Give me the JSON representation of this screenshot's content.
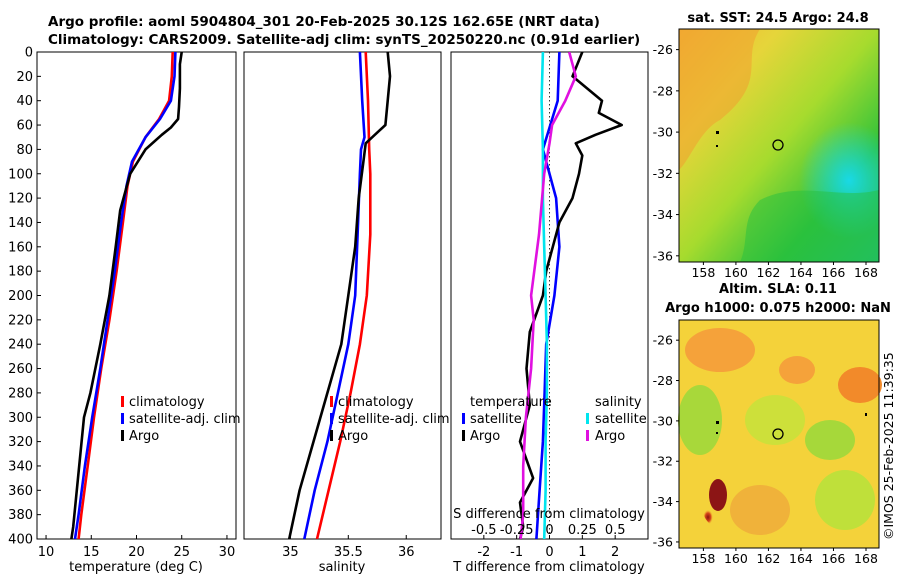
{
  "title_line1": "Argo profile: aoml 5904804_301 20-Feb-2025 30.12S 162.65E (NRT data)",
  "title_line2": "Climatology: CARS2009. Satellite-adj clim: synTS_20250220.nc (0.91d earlier)",
  "sst_title": "sat. SST: 24.5 Argo: 24.8",
  "sla_title1": "Altim. SLA: 0.11",
  "sla_title2": "Argo h1000: 0.075 h2000: NaN",
  "side_label": "©IMOS 25-Feb-2025 11:39:35",
  "colors": {
    "climatology": "#ff0000",
    "satellite": "#0000ff",
    "argo": "#000000",
    "sat_salinity": "#00e5ee",
    "argo_salinity": "#e010e0"
  },
  "chart_data": [
    {
      "type": "line",
      "xlabel": "temperature (deg C)",
      "ylabel": "",
      "xlim": [
        9,
        31
      ],
      "ylim": [
        400,
        0
      ],
      "xticks": [
        "10",
        "15",
        "20",
        "25",
        "30"
      ],
      "yticks": [
        "0",
        "20",
        "40",
        "60",
        "80",
        "100",
        "120",
        "140",
        "160",
        "180",
        "200",
        "220",
        "240",
        "260",
        "280",
        "300",
        "320",
        "340",
        "360",
        "380",
        "400"
      ],
      "legend": [
        "climatology",
        "satellite-adj. clim",
        "Argo"
      ],
      "series": [
        {
          "name": "climatology",
          "depth": [
            0,
            20,
            40,
            55,
            70,
            90,
            110,
            140,
            180,
            220,
            260,
            300,
            340,
            380,
            400
          ],
          "values": [
            24.0,
            23.9,
            23.6,
            22.5,
            21.0,
            19.6,
            19.0,
            18.5,
            17.8,
            17.0,
            16.1,
            15.3,
            14.6,
            13.9,
            13.6
          ]
        },
        {
          "name": "satellite-adj. clim",
          "depth": [
            0,
            20,
            40,
            55,
            70,
            90,
            110,
            140,
            180,
            220,
            260,
            300,
            340,
            380,
            400
          ],
          "values": [
            24.3,
            24.2,
            23.8,
            22.6,
            21.0,
            19.5,
            18.9,
            18.3,
            17.6,
            16.8,
            16.0,
            15.1,
            14.3,
            13.6,
            13.2
          ]
        },
        {
          "name": "Argo",
          "depth": [
            0,
            10,
            30,
            45,
            55,
            62,
            68,
            80,
            100,
            130,
            160,
            200,
            240,
            280,
            300,
            330,
            360,
            390,
            400
          ],
          "values": [
            25.0,
            24.8,
            24.8,
            24.7,
            24.6,
            23.8,
            22.8,
            21.0,
            19.3,
            18.2,
            17.7,
            17.0,
            16.0,
            14.9,
            14.2,
            13.8,
            13.4,
            13.0,
            12.8
          ]
        }
      ]
    },
    {
      "type": "line",
      "xlabel": "salinity",
      "xlim": [
        34.6,
        36.3
      ],
      "ylim": [
        400,
        0
      ],
      "xticks": [
        "35",
        "35.5",
        "36"
      ],
      "legend": [
        "climatology",
        "satellite-adj. clim",
        "Argo"
      ],
      "series": [
        {
          "name": "climatology",
          "depth": [
            0,
            40,
            80,
            100,
            150,
            200,
            240,
            280,
            320,
            360,
            400
          ],
          "values": [
            35.65,
            35.67,
            35.68,
            35.69,
            35.69,
            35.66,
            35.6,
            35.52,
            35.43,
            35.33,
            35.23
          ]
        },
        {
          "name": "satellite-adj. clim",
          "depth": [
            0,
            40,
            70,
            80,
            100,
            150,
            200,
            240,
            280,
            320,
            360,
            400
          ],
          "values": [
            35.6,
            35.62,
            35.64,
            35.61,
            35.6,
            35.58,
            35.56,
            35.5,
            35.41,
            35.32,
            35.21,
            35.12
          ]
        },
        {
          "name": "Argo",
          "depth": [
            0,
            20,
            40,
            60,
            75,
            90,
            120,
            160,
            200,
            240,
            280,
            320,
            360,
            400
          ],
          "values": [
            35.84,
            35.86,
            35.84,
            35.82,
            35.65,
            35.63,
            35.59,
            35.56,
            35.5,
            35.44,
            35.32,
            35.2,
            35.08,
            34.99
          ]
        }
      ]
    },
    {
      "type": "line",
      "xlabel": "T difference from climatology",
      "secondary_label": "S difference from climatology",
      "xlim": [
        -3,
        3
      ],
      "s_xlim": [
        -0.75,
        0.75
      ],
      "ylim": [
        400,
        0
      ],
      "xticks": [
        "-2",
        "-1",
        "0",
        "1",
        "2"
      ],
      "s_xticks": [
        "-0.5",
        "-0.25",
        "0",
        "0.25",
        "0.5"
      ],
      "legend_temperature": {
        "title": "temperature",
        "items": [
          "satellite",
          "Argo"
        ]
      },
      "legend_salinity": {
        "title": "salinity",
        "items": [
          "satellite",
          "Argo"
        ]
      },
      "series": [
        {
          "name": "T satellite",
          "depth": [
            0,
            40,
            80,
            120,
            160,
            200,
            240,
            280,
            320,
            360,
            400
          ],
          "values": [
            0.3,
            0.25,
            -0.2,
            0.2,
            0.3,
            0.15,
            -0.1,
            -0.15,
            -0.2,
            -0.3,
            -0.4
          ]
        },
        {
          "name": "T Argo",
          "depth": [
            0,
            20,
            40,
            50,
            60,
            68,
            75,
            85,
            100,
            120,
            140,
            160,
            180,
            200,
            230,
            260,
            290,
            320,
            350,
            370,
            390,
            400
          ],
          "values": [
            1.0,
            0.7,
            1.6,
            1.5,
            2.2,
            1.4,
            0.8,
            1.0,
            0.9,
            0.7,
            0.3,
            0.1,
            -0.1,
            -0.2,
            -0.6,
            -0.7,
            -0.6,
            -0.9,
            -0.5,
            -0.9,
            -0.8,
            -0.9
          ]
        },
        {
          "name": "S satellite",
          "depth": [
            0,
            40,
            80,
            120,
            160,
            200,
            240,
            280,
            320,
            360,
            400
          ],
          "values": [
            -0.05,
            -0.06,
            -0.05,
            -0.05,
            -0.04,
            -0.03,
            -0.02,
            -0.02,
            -0.03,
            -0.03,
            -0.04
          ]
        },
        {
          "name": "S Argo",
          "depth": [
            0,
            20,
            40,
            60,
            75,
            100,
            150,
            200,
            220,
            260,
            300,
            340,
            380,
            400
          ],
          "values": [
            0.15,
            0.2,
            0.12,
            0.02,
            0.0,
            -0.04,
            -0.08,
            -0.14,
            -0.12,
            -0.14,
            -0.18,
            -0.2,
            -0.2,
            -0.22
          ]
        }
      ]
    },
    {
      "type": "heatmap",
      "title": "sat. SST: 24.5 Argo: 24.8",
      "xticks": [
        "158",
        "160",
        "162",
        "164",
        "166",
        "168"
      ],
      "yticks": [
        "-26",
        "-28",
        "-30",
        "-32",
        "-34",
        "-36"
      ],
      "xlim": [
        156.5,
        168.8
      ],
      "ylim": [
        -36.3,
        -25
      ]
    },
    {
      "type": "heatmap",
      "title": "Altim. SLA: 0.11 / Argo h1000: 0.075 h2000: NaN",
      "xticks": [
        "158",
        "160",
        "162",
        "164",
        "166",
        "168"
      ],
      "yticks": [
        "-26",
        "-28",
        "-30",
        "-32",
        "-34",
        "-36"
      ],
      "xlim": [
        156.5,
        168.8
      ],
      "ylim": [
        -36.3,
        -25
      ]
    }
  ]
}
